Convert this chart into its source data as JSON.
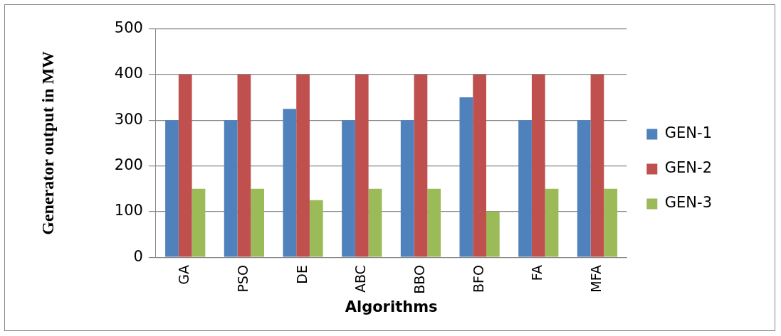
{
  "chart_data": {
    "type": "bar",
    "xlabel": "Algorithms",
    "ylabel": "Generator output in MW",
    "categories": [
      "GA",
      "PSO",
      "DE",
      "ABC",
      "BBO",
      "BFO",
      "FA",
      "MFA"
    ],
    "series": [
      {
        "name": "GEN-1",
        "color": "#4f81bd",
        "values": [
          300,
          300,
          325,
          300,
          300,
          350,
          300,
          300
        ]
      },
      {
        "name": "GEN-2",
        "color": "#c0504d",
        "values": [
          400,
          400,
          400,
          400,
          400,
          400,
          400,
          400
        ]
      },
      {
        "name": "GEN-3",
        "color": "#9bbb59",
        "values": [
          150,
          150,
          125,
          150,
          150,
          100,
          150,
          150
        ]
      }
    ],
    "ylim": [
      0,
      500
    ],
    "yticks": [
      0,
      100,
      200,
      300,
      400,
      500
    ],
    "grid": "y",
    "legend": "right"
  }
}
